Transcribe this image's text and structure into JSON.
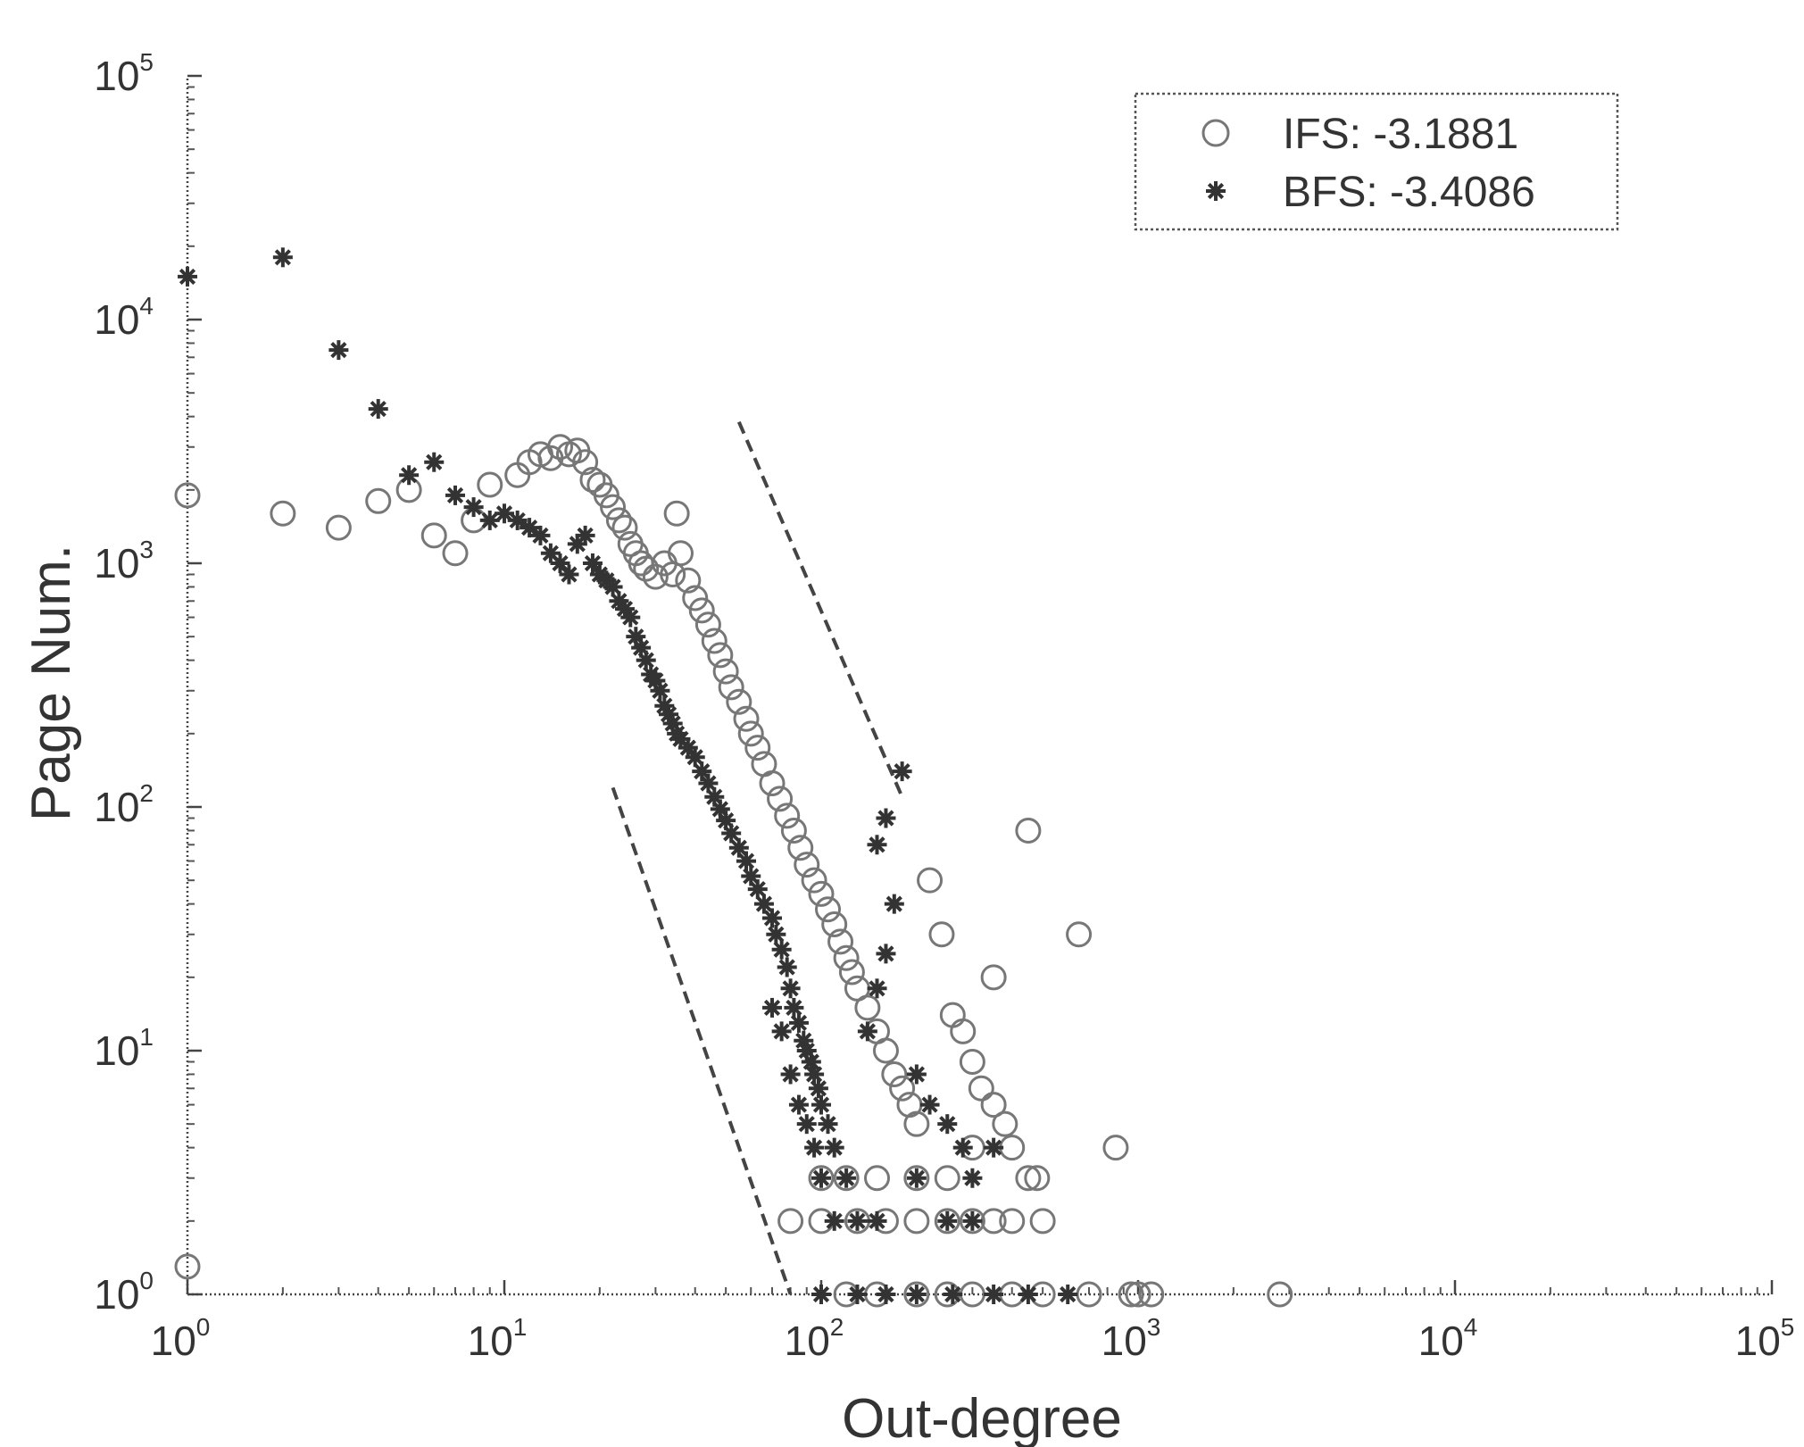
{
  "chart_data": {
    "type": "scatter",
    "xlabel": "Out-degree",
    "ylabel": "Page Num.",
    "x_scale": "log",
    "y_scale": "log",
    "xlim": [
      1,
      100000
    ],
    "ylim": [
      1,
      100000
    ],
    "x_ticks": [
      {
        "value": 1,
        "base": "10",
        "exp": "0"
      },
      {
        "value": 10,
        "base": "10",
        "exp": "1"
      },
      {
        "value": 100,
        "base": "10",
        "exp": "2"
      },
      {
        "value": 1000,
        "base": "10",
        "exp": "3"
      },
      {
        "value": 10000,
        "base": "10",
        "exp": "4"
      },
      {
        "value": 100000,
        "base": "10",
        "exp": "5"
      }
    ],
    "y_ticks": [
      {
        "value": 1,
        "base": "10",
        "exp": "0"
      },
      {
        "value": 10,
        "base": "10",
        "exp": "1"
      },
      {
        "value": 100,
        "base": "10",
        "exp": "2"
      },
      {
        "value": 1000,
        "base": "10",
        "exp": "3"
      },
      {
        "value": 10000,
        "base": "10",
        "exp": "4"
      },
      {
        "value": 100000,
        "base": "10",
        "exp": "5"
      }
    ],
    "legend": {
      "position": "top-right",
      "framed": true
    },
    "series": [
      {
        "name": "IFS: -3.1881",
        "marker": "circle-open",
        "color": "#777777",
        "points": [
          [
            1,
            1900
          ],
          [
            2,
            1600
          ],
          [
            3,
            1400
          ],
          [
            4,
            1800
          ],
          [
            5,
            2000
          ],
          [
            6,
            1300
          ],
          [
            7,
            1100
          ],
          [
            8,
            1500
          ],
          [
            9,
            2100
          ],
          [
            11,
            2300
          ],
          [
            12,
            2600
          ],
          [
            13,
            2800
          ],
          [
            14,
            2700
          ],
          [
            15,
            3000
          ],
          [
            16,
            2800
          ],
          [
            17,
            2900
          ],
          [
            18,
            2600
          ],
          [
            19,
            2200
          ],
          [
            20,
            2100
          ],
          [
            21,
            1900
          ],
          [
            22,
            1700
          ],
          [
            23,
            1500
          ],
          [
            24,
            1400
          ],
          [
            25,
            1200
          ],
          [
            26,
            1100
          ],
          [
            27,
            1000
          ],
          [
            28,
            950
          ],
          [
            30,
            880
          ],
          [
            32,
            1000
          ],
          [
            34,
            900
          ],
          [
            35,
            1600
          ],
          [
            36,
            1100
          ],
          [
            38,
            850
          ],
          [
            40,
            720
          ],
          [
            42,
            640
          ],
          [
            44,
            560
          ],
          [
            46,
            480
          ],
          [
            48,
            420
          ],
          [
            50,
            360
          ],
          [
            52,
            310
          ],
          [
            55,
            270
          ],
          [
            58,
            230
          ],
          [
            60,
            200
          ],
          [
            63,
            175
          ],
          [
            66,
            150
          ],
          [
            70,
            125
          ],
          [
            74,
            108
          ],
          [
            78,
            92
          ],
          [
            82,
            80
          ],
          [
            86,
            68
          ],
          [
            90,
            58
          ],
          [
            95,
            50
          ],
          [
            100,
            44
          ],
          [
            105,
            38
          ],
          [
            110,
            33
          ],
          [
            115,
            28
          ],
          [
            120,
            24
          ],
          [
            125,
            21
          ],
          [
            130,
            18
          ],
          [
            140,
            15
          ],
          [
            150,
            12
          ],
          [
            160,
            10
          ],
          [
            170,
            8
          ],
          [
            180,
            7
          ],
          [
            190,
            6
          ],
          [
            200,
            5
          ],
          [
            220,
            50
          ],
          [
            240,
            30
          ],
          [
            260,
            14
          ],
          [
            280,
            12
          ],
          [
            300,
            9
          ],
          [
            320,
            7
          ],
          [
            350,
            6
          ],
          [
            380,
            5
          ],
          [
            400,
            4
          ],
          [
            450,
            3
          ],
          [
            300,
            4
          ],
          [
            250,
            3
          ],
          [
            200,
            3
          ],
          [
            150,
            3
          ],
          [
            120,
            3
          ],
          [
            100,
            3
          ],
          [
            80,
            2
          ],
          [
            100,
            2
          ],
          [
            130,
            2
          ],
          [
            160,
            2
          ],
          [
            200,
            2
          ],
          [
            250,
            2
          ],
          [
            300,
            2
          ],
          [
            350,
            2
          ],
          [
            400,
            2
          ],
          [
            500,
            2
          ],
          [
            120,
            1
          ],
          [
            150,
            1
          ],
          [
            200,
            1
          ],
          [
            250,
            1
          ],
          [
            300,
            1
          ],
          [
            400,
            1
          ],
          [
            500,
            1
          ],
          [
            700,
            1
          ],
          [
            950,
            1
          ],
          [
            1100,
            1
          ],
          [
            2800,
            1
          ],
          [
            1000,
            1
          ],
          [
            450,
            80
          ],
          [
            650,
            30
          ],
          [
            850,
            4
          ],
          [
            480,
            3
          ],
          [
            350,
            20
          ],
          [
            1,
            1.3
          ]
        ]
      },
      {
        "name": "BFS: -3.4086",
        "marker": "star",
        "color": "#333333",
        "points": [
          [
            1,
            15000
          ],
          [
            2,
            18000
          ],
          [
            3,
            7500
          ],
          [
            4,
            4300
          ],
          [
            5,
            2300
          ],
          [
            6,
            2600
          ],
          [
            7,
            1900
          ],
          [
            8,
            1700
          ],
          [
            9,
            1500
          ],
          [
            10,
            1600
          ],
          [
            11,
            1500
          ],
          [
            12,
            1400
          ],
          [
            13,
            1300
          ],
          [
            14,
            1100
          ],
          [
            15,
            1000
          ],
          [
            16,
            900
          ],
          [
            17,
            1200
          ],
          [
            18,
            1300
          ],
          [
            19,
            1000
          ],
          [
            20,
            900
          ],
          [
            21,
            850
          ],
          [
            22,
            800
          ],
          [
            23,
            700
          ],
          [
            24,
            650
          ],
          [
            25,
            600
          ],
          [
            26,
            500
          ],
          [
            27,
            450
          ],
          [
            28,
            400
          ],
          [
            29,
            350
          ],
          [
            30,
            330
          ],
          [
            31,
            300
          ],
          [
            32,
            260
          ],
          [
            33,
            240
          ],
          [
            34,
            220
          ],
          [
            35,
            200
          ],
          [
            36,
            190
          ],
          [
            38,
            175
          ],
          [
            40,
            160
          ],
          [
            42,
            140
          ],
          [
            44,
            125
          ],
          [
            46,
            110
          ],
          [
            48,
            98
          ],
          [
            50,
            88
          ],
          [
            52,
            78
          ],
          [
            55,
            68
          ],
          [
            58,
            60
          ],
          [
            60,
            52
          ],
          [
            63,
            46
          ],
          [
            66,
            40
          ],
          [
            70,
            35
          ],
          [
            72,
            30
          ],
          [
            75,
            26
          ],
          [
            78,
            22
          ],
          [
            80,
            18
          ],
          [
            82,
            15
          ],
          [
            85,
            13
          ],
          [
            88,
            11
          ],
          [
            90,
            10
          ],
          [
            93,
            9
          ],
          [
            95,
            8
          ],
          [
            98,
            7
          ],
          [
            100,
            6
          ],
          [
            105,
            5
          ],
          [
            110,
            4
          ],
          [
            120,
            3
          ],
          [
            70,
            15
          ],
          [
            75,
            12
          ],
          [
            80,
            8
          ],
          [
            85,
            6
          ],
          [
            90,
            5
          ],
          [
            95,
            4
          ],
          [
            100,
            3
          ],
          [
            110,
            2
          ],
          [
            130,
            2
          ],
          [
            150,
            2
          ],
          [
            100,
            1
          ],
          [
            130,
            1
          ],
          [
            160,
            1
          ],
          [
            200,
            1
          ],
          [
            260,
            1
          ],
          [
            350,
            1
          ],
          [
            450,
            1
          ],
          [
            600,
            1
          ],
          [
            180,
            140
          ],
          [
            160,
            90
          ],
          [
            150,
            70
          ],
          [
            170,
            40
          ],
          [
            160,
            25
          ],
          [
            150,
            18
          ],
          [
            140,
            12
          ],
          [
            200,
            8
          ],
          [
            220,
            6
          ],
          [
            250,
            5
          ],
          [
            280,
            4
          ],
          [
            300,
            3
          ],
          [
            350,
            4
          ],
          [
            200,
            3
          ],
          [
            250,
            2
          ],
          [
            300,
            2
          ]
        ]
      }
    ],
    "fit_lines": [
      {
        "style": "dashed",
        "from": [
          22,
          120
        ],
        "to": [
          80,
          1
        ]
      },
      {
        "style": "dashed",
        "from": [
          55,
          3800
        ],
        "to": [
          180,
          110
        ]
      }
    ]
  }
}
